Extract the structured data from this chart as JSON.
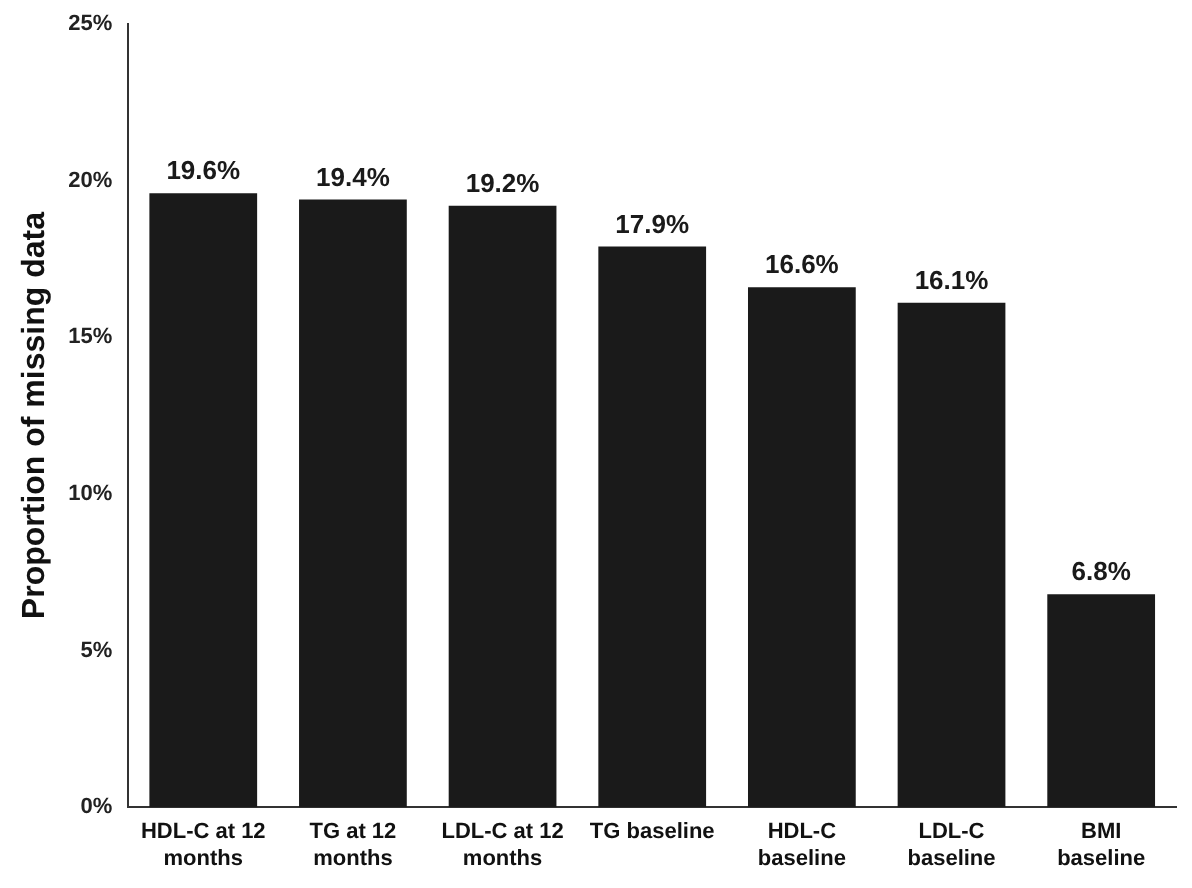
{
  "chart_data": {
    "type": "bar",
    "ylabel": "Proportion of missing data",
    "categories": [
      "HDL-C at 12 months",
      "TG at 12 months",
      "LDL-C at 12 months",
      "TG baseline",
      "HDL-C baseline",
      "LDL-C baseline",
      "BMI baseline"
    ],
    "values": [
      19.6,
      19.4,
      19.2,
      17.9,
      16.6,
      16.1,
      6.8
    ],
    "value_labels": [
      "19.6%",
      "19.4%",
      "19.2%",
      "17.9%",
      "16.6%",
      "16.1%",
      "6.8%"
    ],
    "color": "#1a1a1a",
    "ylim": [
      0,
      25
    ],
    "yticks": [
      {
        "value": 0,
        "label": "0%"
      },
      {
        "value": 5,
        "label": "5%"
      },
      {
        "value": 10,
        "label": "10%"
      },
      {
        "value": 15,
        "label": "15%"
      },
      {
        "value": 20,
        "label": "20%"
      },
      {
        "value": 25,
        "label": "25%"
      }
    ],
    "grid": false,
    "legend": false
  }
}
